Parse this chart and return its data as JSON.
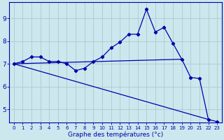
{
  "xlabel": "Graphe des températures (°c)",
  "background_color": "#cce8ee",
  "line_color": "#0000aa",
  "grid_color": "#aacccc",
  "xlim": [
    -0.5,
    23.5
  ],
  "ylim": [
    4.4,
    9.7
  ],
  "xticks": [
    0,
    1,
    2,
    3,
    4,
    5,
    6,
    7,
    8,
    9,
    10,
    11,
    12,
    13,
    14,
    15,
    16,
    17,
    18,
    19,
    20,
    21,
    22,
    23
  ],
  "yticks": [
    5,
    6,
    7,
    8,
    9
  ],
  "line1_x": [
    0,
    1,
    2,
    3,
    4,
    5,
    6,
    7,
    8,
    9,
    10,
    11,
    12,
    13,
    14,
    15,
    16,
    17,
    18,
    19,
    20,
    21,
    22,
    23
  ],
  "line1_y": [
    7.0,
    7.1,
    7.3,
    7.3,
    7.1,
    7.1,
    7.0,
    6.7,
    6.8,
    7.1,
    7.3,
    7.7,
    7.95,
    8.3,
    8.3,
    9.4,
    8.4,
    8.6,
    7.9,
    7.2,
    6.4,
    6.35,
    4.55,
    4.45
  ],
  "line2_x": [
    0,
    19
  ],
  "line2_y": [
    7.0,
    7.2
  ],
  "line3_x": [
    0,
    22
  ],
  "line3_y": [
    7.0,
    4.55
  ],
  "marker": "D",
  "marker_size": 2.2,
  "linewidth": 0.9,
  "xlabel_fontsize": 6.5,
  "tick_fontsize_x": 5.0,
  "tick_fontsize_y": 6.5
}
